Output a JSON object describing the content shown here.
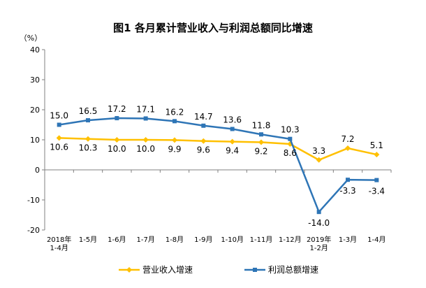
{
  "chart_data": {
    "type": "line",
    "title": "图1 各月累计营业收入与利润总额同比增速",
    "ylabel": "（%）",
    "ylim": [
      -20,
      40
    ],
    "yticks": [
      -20,
      -10,
      0,
      10,
      20,
      30,
      40
    ],
    "grid": false,
    "legend_position": "bottom",
    "categories": [
      [
        "2018年",
        "1-4月"
      ],
      [
        "1-5月"
      ],
      [
        "1-6月"
      ],
      [
        "1-7月"
      ],
      [
        "1-8月"
      ],
      [
        "1-9月"
      ],
      [
        "1-10月"
      ],
      [
        "1-11月"
      ],
      [
        "1-12月"
      ],
      [
        "2019年",
        "1-2月"
      ],
      [
        "1-3月"
      ],
      [
        "1-4月"
      ]
    ],
    "series": [
      {
        "name": "营业收入增速",
        "color": "#FFC000",
        "marker": "diamond",
        "values": [
          10.6,
          10.3,
          10.0,
          10.0,
          9.9,
          9.6,
          9.4,
          9.2,
          8.6,
          3.3,
          7.2,
          5.1
        ],
        "labels": [
          "10.6",
          "10.3",
          "10.0",
          "10.0",
          "9.9",
          "9.6",
          "9.4",
          "9.2",
          "8.6",
          "3.3",
          "7.2",
          "5.1"
        ]
      },
      {
        "name": "利润总额增速",
        "color": "#2E75B6",
        "marker": "square",
        "values": [
          15.0,
          16.5,
          17.2,
          17.1,
          16.2,
          14.7,
          13.6,
          11.8,
          10.3,
          -14.0,
          -3.3,
          -3.4
        ],
        "labels": [
          "15.0",
          "16.5",
          "17.2",
          "17.1",
          "16.2",
          "14.7",
          "13.6",
          "11.8",
          "10.3",
          "-14.0",
          "-3.3",
          "-3.4"
        ]
      }
    ]
  }
}
